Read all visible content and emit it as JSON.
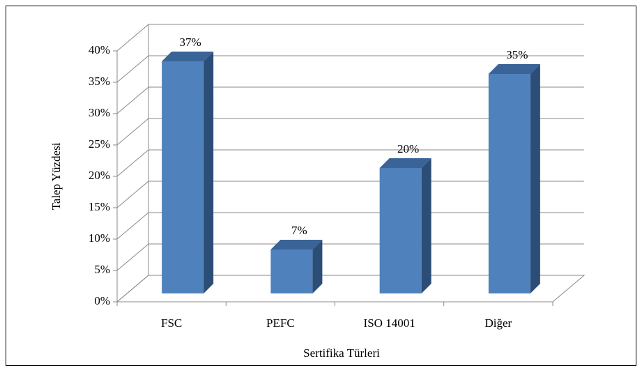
{
  "chart_data": {
    "type": "bar3d",
    "x_label": "Sertifika Türleri",
    "y_label": "Talep Yüzdesi",
    "categories": [
      "FSC",
      "PEFC",
      "ISO 14001",
      "Diğer"
    ],
    "values": [
      37,
      7,
      20,
      35
    ],
    "value_labels": [
      "37%",
      "7%",
      "20%",
      "35%"
    ],
    "color": "#4f81bd",
    "ylim": [
      0,
      40
    ],
    "yticks": [
      {
        "value": 0,
        "label": "0%"
      },
      {
        "value": 5,
        "label": "5%"
      },
      {
        "value": 10,
        "label": "10%"
      },
      {
        "value": 15,
        "label": "15%"
      },
      {
        "value": 20,
        "label": "20%"
      },
      {
        "value": 25,
        "label": "25%"
      },
      {
        "value": 30,
        "label": "30%"
      },
      {
        "value": 35,
        "label": "35%"
      },
      {
        "value": 40,
        "label": "40%"
      }
    ],
    "grid": true
  }
}
